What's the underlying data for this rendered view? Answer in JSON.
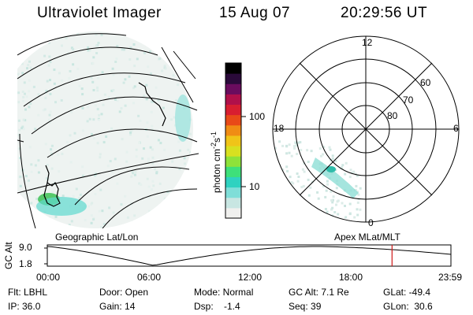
{
  "header": {
    "instrument": "Ultraviolet Imager",
    "date": "15 Aug 07",
    "time": "20:29:56 UT"
  },
  "colorbar": {
    "unit_label": "photon cm",
    "unit_exp1": "-2",
    "unit_s": "s",
    "unit_exp2": "-1",
    "ticks": [
      "100",
      "10"
    ],
    "colors": [
      "#f0f0ee",
      "#c8e6e2",
      "#7fded8",
      "#2fd2c0",
      "#3ee07a",
      "#8ee23a",
      "#d8e020",
      "#f0c418",
      "#f08c14",
      "#e84a18",
      "#d81e30",
      "#b0104a",
      "#6a0c5e",
      "#2a0a3a",
      "#000000"
    ]
  },
  "left_map": {
    "label": "Geographic Lat/Lon"
  },
  "polar_map": {
    "label": "Apex MLat/MLT",
    "mlt_labels": {
      "top": "12",
      "left": "18",
      "right": "6",
      "bottom": "0"
    },
    "lat_labels": [
      "60",
      "70",
      "80"
    ]
  },
  "altitude_plot": {
    "ylabel": "GC Alt",
    "yticks": [
      "9.0",
      "1.8"
    ],
    "xticks": [
      "00:00",
      "06:00",
      "12:00",
      "18:00",
      "23:59"
    ],
    "marker_time_hours": 20.5
  },
  "status": {
    "flt": "Flt: LBHL",
    "ip": "IP: 36.0",
    "door": "Door: Open",
    "gain": "Gain: 14",
    "mode": "Mode: Normal",
    "dsp": "Dsp:    -1.4",
    "gc_alt": "GC Alt: 7.1 Re",
    "seq": "Seq: 39",
    "glat": "GLat: -49.4",
    "glon": "GLon:  30.6"
  }
}
